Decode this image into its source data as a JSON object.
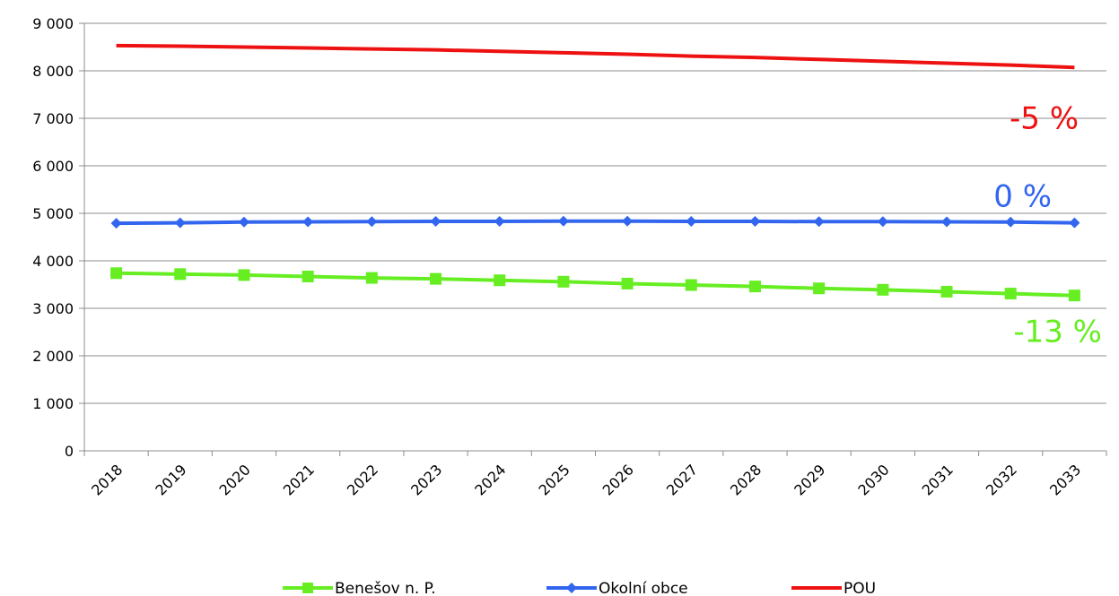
{
  "chart_data": {
    "type": "line",
    "title": "",
    "xlabel": "",
    "ylabel": "",
    "x": [
      "2018",
      "2019",
      "2020",
      "2021",
      "2022",
      "2023",
      "2024",
      "2025",
      "2026",
      "2027",
      "2028",
      "2029",
      "2030",
      "2031",
      "2032",
      "2033"
    ],
    "ylim": [
      0,
      9000
    ],
    "yticks": [
      0,
      1000,
      2000,
      3000,
      4000,
      5000,
      6000,
      7000,
      8000,
      9000
    ],
    "ytick_labels": [
      "0",
      "1 000",
      "2 000",
      "3 000",
      "4 000",
      "5 000",
      "6 000",
      "7 000",
      "8 000",
      "9 000"
    ],
    "grid": "horizontal",
    "legend_position": "bottom",
    "series": [
      {
        "name": "Benešov n. P.",
        "color": "#66ee22",
        "marker": "square",
        "values": [
          3740,
          3720,
          3700,
          3670,
          3640,
          3620,
          3590,
          3560,
          3520,
          3490,
          3460,
          3420,
          3390,
          3350,
          3310,
          3270
        ]
      },
      {
        "name": "Okolní obce",
        "color": "#3366ee",
        "marker": "diamond",
        "values": [
          4790,
          4800,
          4815,
          4820,
          4825,
          4830,
          4830,
          4835,
          4835,
          4830,
          4830,
          4825,
          4825,
          4820,
          4815,
          4800
        ]
      },
      {
        "name": "POU",
        "color": "#ee1111",
        "marker": "none",
        "values": [
          8530,
          8520,
          8500,
          8480,
          8460,
          8440,
          8410,
          8380,
          8350,
          8310,
          8280,
          8240,
          8200,
          8160,
          8120,
          8070
        ]
      }
    ],
    "annotations": [
      {
        "text": "-5 %",
        "series": "POU",
        "color": "#ee1111"
      },
      {
        "text": "0 %",
        "series": "Okolní obce",
        "color": "#3366ee"
      },
      {
        "text": "-13 %",
        "series": "Benešov n. P.",
        "color": "#66ee22"
      }
    ]
  }
}
